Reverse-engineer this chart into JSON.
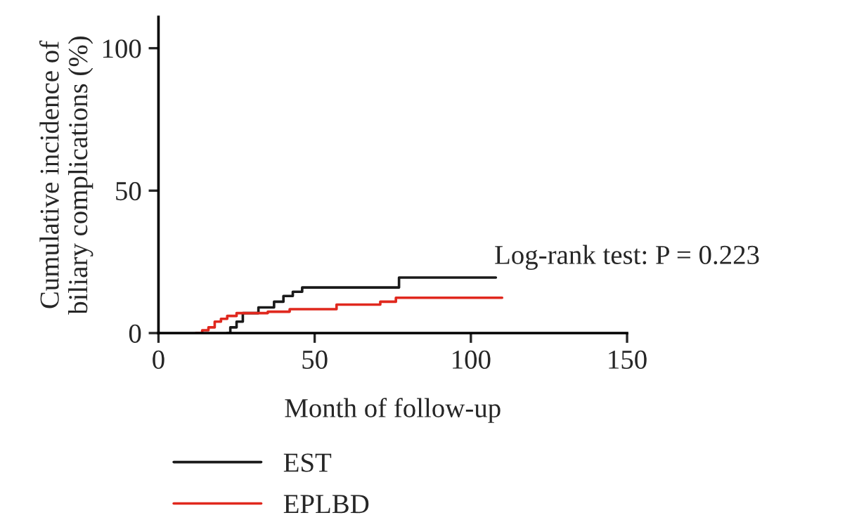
{
  "chart_data": {
    "type": "step",
    "xlabel": "Month of follow-up",
    "ylabel": "Cumulative incidence of\nbiliary complications (%)",
    "annotations": [
      "Log-rank test: P = 0.223"
    ],
    "xlim": [
      0,
      150
    ],
    "xticks": [
      0,
      50,
      100,
      150
    ],
    "ylim": [
      0,
      111
    ],
    "yticks": [
      0,
      50,
      100
    ],
    "grid": false,
    "legend": "bottom",
    "series": [
      {
        "name": "EST",
        "color": "#1a1a1a",
        "x": [
          22,
          23,
          25,
          27,
          32,
          37,
          40,
          43,
          46,
          77,
          108
        ],
        "values": [
          0,
          2,
          4,
          7,
          9,
          11,
          13,
          14.5,
          16,
          19.5,
          19.5
        ]
      },
      {
        "name": "EPLBD",
        "color": "#e0281e",
        "x": [
          12,
          14,
          16,
          18,
          20,
          22,
          25,
          35,
          42,
          57,
          71,
          76,
          110
        ],
        "values": [
          0,
          1,
          2,
          4,
          5,
          6,
          7,
          7.5,
          8.4,
          10,
          11,
          12.4,
          12.4
        ]
      }
    ]
  }
}
